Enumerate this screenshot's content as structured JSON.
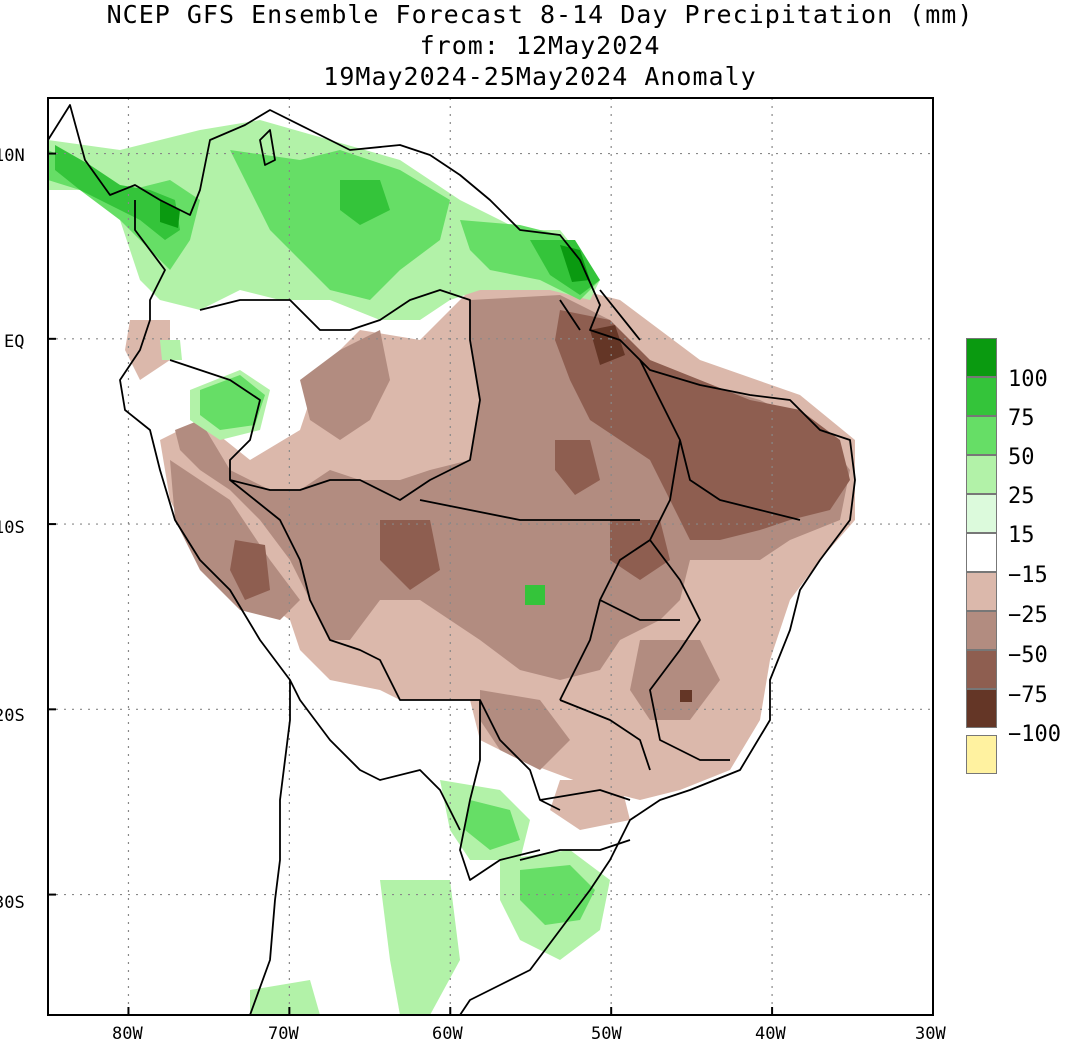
{
  "title": {
    "line1": "NCEP GFS Ensemble Forecast 8-14 Day Precipitation (mm)",
    "line2": "from: 12May2024",
    "line3": "19May2024-25May2024 Anomaly"
  },
  "axes": {
    "lat_labels": [
      "10N",
      "EQ",
      "10S",
      "20S",
      "30S"
    ],
    "lat_values": [
      10,
      0,
      -10,
      -20,
      -30
    ],
    "lon_labels": [
      "80W",
      "70W",
      "60W",
      "50W",
      "40W",
      "30W"
    ],
    "lon_values": [
      -80,
      -70,
      -60,
      -50,
      -40,
      -30
    ],
    "lat_range": [
      -36.5,
      13
    ],
    "lon_range": [
      -85,
      -30
    ],
    "grid": "dotted"
  },
  "legend": {
    "labels": [
      "100",
      "75",
      "50",
      "25",
      "15",
      "−15",
      "−25",
      "−50",
      "−75",
      "−100"
    ],
    "colors": [
      "#0a9a10",
      "#34c43a",
      "#66de66",
      "#b2f2a8",
      "#dcfadc",
      "#ffffff",
      "#dbb8ab",
      "#b28c80",
      "#8e5e50",
      "#643626",
      "#fff2a0"
    ]
  },
  "colors": {
    "dry_light": "#dbb8ab",
    "dry_mid": "#b28c80",
    "dry_dark": "#8e5e50",
    "dry_darkest": "#643626",
    "wet_light": "#b2f2a8",
    "wet_mid": "#66de66",
    "wet_dark": "#34c43a",
    "wet_darkest": "#0a9a10"
  }
}
